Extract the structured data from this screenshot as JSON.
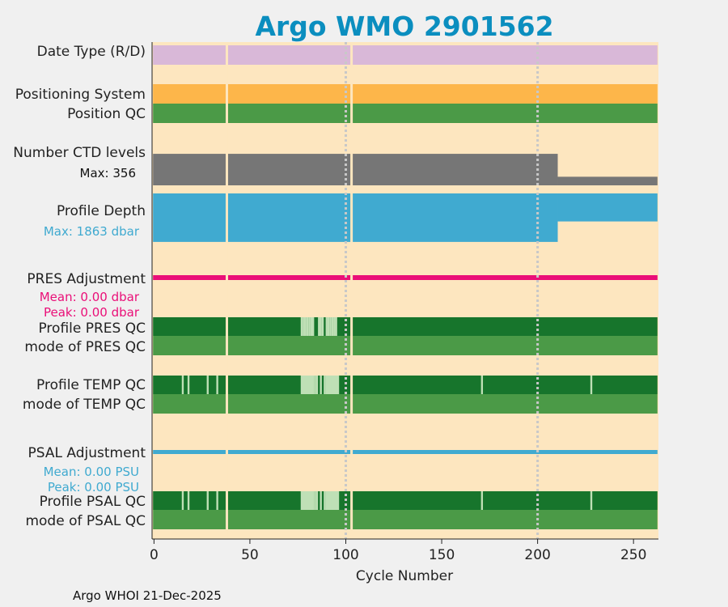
{
  "colors": {
    "background": "#fde6bf",
    "page": "#f0f0f0",
    "title": "#0b8ebf",
    "date_type": "#d9b8d8",
    "positioning": "#fdb64a",
    "qc_good": "#4b9a47",
    "qc_dark": "#17752c",
    "qc_light": "#bfe0b6",
    "ctd": "#767676",
    "profile_depth": "#40aad0",
    "pres_adj": "#ea0f78",
    "psal_adj": "#40aad0",
    "gridline": "#c8c8c8",
    "gap": "#fde6bf"
  },
  "chart_data": {
    "type": "table",
    "title": "Argo WMO 2901562",
    "xlabel": "Cycle Number",
    "xlim": [
      -1,
      263
    ],
    "xticks": [
      0,
      50,
      100,
      150,
      200,
      250
    ],
    "vertical_gridlines": [
      100,
      200
    ],
    "missing_cycles": [
      38,
      103
    ],
    "rows": [
      {
        "label": "Date Type (R/D)"
      },
      {
        "label": "Positioning System"
      },
      {
        "label": "Position QC"
      },
      {
        "label": "Number CTD levels",
        "note": "Max: 356",
        "max": 356,
        "segments": [
          [
            0,
            211,
            330
          ],
          [
            211,
            263,
            90
          ]
        ]
      },
      {
        "label": "Profile Depth",
        "note": "Max: 1863 dbar",
        "max": 1863,
        "segments": [
          [
            0,
            211,
            1800
          ],
          [
            211,
            263,
            1040
          ]
        ]
      },
      {
        "label": "PRES Adjustment",
        "mean_text": "Mean: 0.00 dbar",
        "peak_text": "Peak: 0.00 dbar",
        "mean": 0.0,
        "peak": 0.0
      },
      {
        "label": "Profile PRES QC",
        "light_cycles": [
          77,
          78,
          79,
          80,
          81,
          82,
          83,
          86,
          87,
          88,
          90,
          91,
          92,
          93,
          94,
          95
        ]
      },
      {
        "label": "mode of PRES QC"
      },
      {
        "label": "Profile TEMP QC",
        "light_cycles": [
          15,
          18,
          28,
          33,
          78,
          80,
          84,
          85,
          87,
          89,
          92,
          93,
          94,
          95,
          171,
          228
        ],
        "light_ranges": [
          [
            77,
            83
          ],
          [
            90,
            96
          ]
        ]
      },
      {
        "label": "mode of TEMP QC"
      },
      {
        "label": "PSAL Adjustment",
        "mean_text": "Mean: 0.00 PSU",
        "peak_text": "Peak: 0.00 PSU",
        "mean": 0.0,
        "peak": 0.0
      },
      {
        "label": "Profile PSAL QC",
        "light_cycles": [
          15,
          18,
          28,
          33,
          78,
          80,
          84,
          85,
          87,
          89,
          92,
          93,
          94,
          95,
          171,
          228
        ],
        "light_ranges": [
          [
            77,
            83
          ],
          [
            90,
            96
          ]
        ]
      },
      {
        "label": "mode of PSAL QC"
      }
    ]
  },
  "footer": "Argo WHOI 21-Dec-2025"
}
